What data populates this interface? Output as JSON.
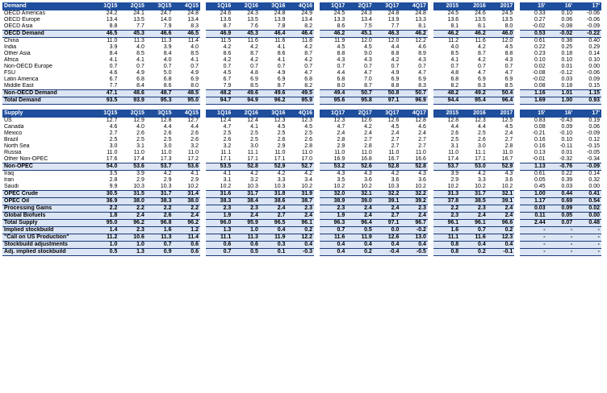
{
  "columns": [
    "1Q15",
    "2Q15",
    "3Q15",
    "4Q15",
    "1Q16",
    "2Q16",
    "3Q16",
    "4Q16",
    "1Q17",
    "2Q17",
    "3Q17",
    "4Q17",
    "2015",
    "2016",
    "2017",
    "15'",
    "16'",
    "17'"
  ],
  "sections": [
    {
      "title": "Demand",
      "rows": [
        {
          "label": "OECD Americas",
          "values": [
            "24.2",
            "24.1",
            "24.7",
            "24.8",
            "24.6",
            "24.3",
            "24.8",
            "24.9",
            "24.5",
            "24.3",
            "24.8",
            "24.8",
            "24.5",
            "24.6",
            "24.5",
            "0.33",
            "0.10",
            "-0.06"
          ],
          "total": false
        },
        {
          "label": "OECD Europe",
          "values": [
            "13.4",
            "13.5",
            "14.0",
            "13.4",
            "13.6",
            "13.5",
            "13.9",
            "13.4",
            "13.3",
            "13.4",
            "13.9",
            "13.3",
            "13.6",
            "13.5",
            "13.5",
            "0.27",
            "0.06",
            "-0.06"
          ],
          "total": false
        },
        {
          "label": "OECD Asia",
          "values": [
            "8.8",
            "7.7",
            "7.9",
            "8.3",
            "8.7",
            "7.6",
            "7.8",
            "8.2",
            "8.6",
            "7.5",
            "7.7",
            "8.1",
            "8.1",
            "8.1",
            "8.0",
            "-0.02",
            "-0.08",
            "-0.09"
          ],
          "total": false
        },
        {
          "label": "OECD Demand",
          "values": [
            "46.5",
            "45.3",
            "46.6",
            "46.5",
            "46.9",
            "45.3",
            "46.4",
            "46.4",
            "46.2",
            "45.1",
            "46.3",
            "46.2",
            "46.2",
            "46.2",
            "46.0",
            "0.53",
            "-0.02",
            "-0.22"
          ],
          "total": true
        },
        {
          "label": "China",
          "values": [
            "11.0",
            "11.3",
            "11.3",
            "11.4",
            "11.5",
            "11.6",
            "11.6",
            "11.8",
            "11.9",
            "12.0",
            "12.0",
            "12.2",
            "11.2",
            "11.6",
            "12.0",
            "0.61",
            "0.38",
            "0.40"
          ],
          "total": false
        },
        {
          "label": "India",
          "values": [
            "3.9",
            "4.0",
            "3.9",
            "4.0",
            "4.2",
            "4.2",
            "4.1",
            "4.2",
            "4.5",
            "4.5",
            "4.4",
            "4.6",
            "4.0",
            "4.2",
            "4.5",
            "0.22",
            "0.25",
            "0.29"
          ],
          "total": false
        },
        {
          "label": "Other Asia",
          "values": [
            "8.4",
            "8.5",
            "8.4",
            "8.5",
            "8.6",
            "8.7",
            "8.6",
            "8.7",
            "8.8",
            "9.0",
            "8.8",
            "8.9",
            "8.5",
            "8.7",
            "8.8",
            "0.23",
            "0.18",
            "0.14"
          ],
          "total": false
        },
        {
          "label": "Africa",
          "values": [
            "4.1",
            "4.1",
            "4.0",
            "4.1",
            "4.2",
            "4.2",
            "4.1",
            "4.2",
            "4.3",
            "4.3",
            "4.2",
            "4.3",
            "4.1",
            "4.2",
            "4.3",
            "0.10",
            "0.10",
            "0.10"
          ],
          "total": false
        },
        {
          "label": "Non-OECD Europe",
          "values": [
            "0.7",
            "0.7",
            "0.7",
            "0.7",
            "0.7",
            "0.7",
            "0.7",
            "0.7",
            "0.7",
            "0.7",
            "0.7",
            "0.7",
            "0.7",
            "0.7",
            "0.7",
            "0.02",
            "0.01",
            "0.00"
          ],
          "total": false
        },
        {
          "label": "FSU",
          "values": [
            "4.6",
            "4.9",
            "5.0",
            "4.9",
            "4.5",
            "4.8",
            "4.9",
            "4.7",
            "4.4",
            "4.7",
            "4.9",
            "4.7",
            "4.8",
            "4.7",
            "4.7",
            "-0.08",
            "-0.12",
            "-0.06"
          ],
          "total": false
        },
        {
          "label": "Latin America",
          "values": [
            "6.7",
            "6.8",
            "6.8",
            "6.9",
            "6.7",
            "6.9",
            "6.9",
            "6.8",
            "6.8",
            "7.0",
            "6.9",
            "6.9",
            "6.8",
            "6.9",
            "6.9",
            "-0.02",
            "0.03",
            "0.09"
          ],
          "total": false
        },
        {
          "label": "Middle East",
          "values": [
            "7.7",
            "8.4",
            "8.6",
            "8.0",
            "7.9",
            "8.5",
            "8.7",
            "8.2",
            "8.0",
            "8.7",
            "8.8",
            "8.3",
            "8.2",
            "8.3",
            "8.5",
            "0.08",
            "0.18",
            "0.15"
          ],
          "total": false
        },
        {
          "label": "Non-OECD Demand",
          "values": [
            "47.1",
            "48.6",
            "48.7",
            "48.5",
            "48.2",
            "49.6",
            "49.6",
            "49.5",
            "49.4",
            "50.7",
            "50.8",
            "50.7",
            "48.2",
            "49.2",
            "50.4",
            "1.16",
            "1.01",
            "1.15"
          ],
          "total": true
        },
        {
          "label": "Total Demand",
          "values": [
            "93.5",
            "93.9",
            "95.3",
            "95.0",
            "94.7",
            "94.9",
            "96.2",
            "95.9",
            "95.6",
            "95.8",
            "97.1",
            "96.9",
            "94.4",
            "95.4",
            "96.4",
            "1.69",
            "1.00",
            "0.93"
          ],
          "total": true
        }
      ]
    },
    {
      "title": "Supply",
      "rows": [
        {
          "label": "US",
          "values": [
            "12.7",
            "12.9",
            "12.8",
            "12.7",
            "12.4",
            "12.4",
            "12.3",
            "12.3",
            "12.3",
            "12.6",
            "12.6",
            "12.8",
            "12.8",
            "12.3",
            "12.5",
            "0.83",
            "-0.43",
            "0.19"
          ],
          "total": false
        },
        {
          "label": "Canada",
          "values": [
            "4.6",
            "4.0",
            "4.4",
            "4.4",
            "4.7",
            "4.1",
            "4.5",
            "4.5",
            "4.7",
            "4.2",
            "4.5",
            "4.6",
            "4.4",
            "4.4",
            "4.5",
            "0.08",
            "0.09",
            "0.06"
          ],
          "total": false
        },
        {
          "label": "Mexico",
          "values": [
            "2.7",
            "2.6",
            "2.6",
            "2.6",
            "2.5",
            "2.5",
            "2.5",
            "2.5",
            "2.4",
            "2.4",
            "2.4",
            "2.4",
            "2.6",
            "2.5",
            "2.4",
            "-0.21",
            "-0.10",
            "-0.09"
          ],
          "total": false
        },
        {
          "label": "Brazil",
          "values": [
            "2.5",
            "2.5",
            "2.5",
            "2.6",
            "2.6",
            "2.5",
            "2.6",
            "2.6",
            "2.8",
            "2.7",
            "2.7",
            "2.7",
            "2.5",
            "2.6",
            "2.7",
            "0.16",
            "0.10",
            "0.12"
          ],
          "total": false
        },
        {
          "label": "North Sea",
          "values": [
            "3.0",
            "3.1",
            "3.0",
            "3.2",
            "3.2",
            "3.0",
            "2.9",
            "2.8",
            "2.9",
            "2.8",
            "2.7",
            "2.7",
            "3.1",
            "3.0",
            "2.8",
            "0.16",
            "-0.11",
            "-0.15"
          ],
          "total": false
        },
        {
          "label": "Russia",
          "values": [
            "11.0",
            "11.0",
            "11.0",
            "11.0",
            "11.1",
            "11.1",
            "11.0",
            "11.0",
            "11.0",
            "11.0",
            "11.0",
            "11.0",
            "11.0",
            "11.1",
            "11.0",
            "0.13",
            "0.01",
            "-0.05"
          ],
          "total": false
        },
        {
          "label": "Other Non-OPEC",
          "values": [
            "17.6",
            "17.4",
            "17.3",
            "17.2",
            "17.1",
            "17.1",
            "17.1",
            "17.0",
            "16.9",
            "16.8",
            "16.7",
            "16.6",
            "17.4",
            "17.1",
            "16.7",
            "-0.01",
            "-0.32",
            "-0.34"
          ],
          "total": false
        },
        {
          "label": "Non-OPEC",
          "values": [
            "54.0",
            "53.6",
            "53.7",
            "53.6",
            "53.5",
            "52.8",
            "52.9",
            "52.7",
            "53.2",
            "52.6",
            "52.8",
            "52.8",
            "53.7",
            "53.0",
            "52.9",
            "1.13",
            "-0.76",
            "-0.09"
          ],
          "total": true
        },
        {
          "label": "Iraq",
          "values": [
            "3.5",
            "3.9",
            "4.2",
            "4.1",
            "4.1",
            "4.2",
            "4.2",
            "4.2",
            "4.3",
            "4.3",
            "4.2",
            "4.3",
            "3.9",
            "4.2",
            "4.3",
            "0.61",
            "0.22",
            "0.14"
          ],
          "total": false
        },
        {
          "label": "Iran",
          "values": [
            "2.8",
            "2.9",
            "2.9",
            "2.9",
            "3.1",
            "3.2",
            "3.3",
            "3.4",
            "3.5",
            "3.6",
            "3.6",
            "3.6",
            "2.9",
            "3.3",
            "3.6",
            "0.05",
            "0.39",
            "0.32"
          ],
          "total": false
        },
        {
          "label": "Saudi",
          "values": [
            "9.9",
            "10.3",
            "10.3",
            "10.2",
            "10.2",
            "10.3",
            "10.3",
            "10.2",
            "10.2",
            "10.2",
            "10.3",
            "10.2",
            "10.2",
            "10.2",
            "10.2",
            "0.45",
            "0.03",
            "0.00"
          ],
          "total": false
        },
        {
          "label": "OPEC Crude",
          "values": [
            "30.5",
            "31.5",
            "31.7",
            "31.4",
            "31.6",
            "31.7",
            "31.8",
            "31.9",
            "32.0",
            "32.1",
            "32.2",
            "32.2",
            "31.3",
            "31.7",
            "32.1",
            "1.00",
            "0.44",
            "0.41"
          ],
          "total": true
        },
        {
          "label": "OPEC Oil",
          "values": [
            "36.9",
            "38.0",
            "38.3",
            "38.0",
            "38.3",
            "38.4",
            "38.6",
            "38.7",
            "38.9",
            "39.0",
            "39.1",
            "39.2",
            "37.8",
            "38.5",
            "39.1",
            "1.17",
            "0.69",
            "0.54"
          ],
          "total": true
        },
        {
          "label": "Processing Gains",
          "values": [
            "2.2",
            "2.2",
            "2.2",
            "2.2",
            "2.3",
            "2.3",
            "2.4",
            "2.3",
            "2.3",
            "2.4",
            "2.4",
            "2.3",
            "2.2",
            "2.3",
            "2.4",
            "0.03",
            "0.09",
            "0.02"
          ],
          "total": true
        },
        {
          "label": "Global Biofuels",
          "values": [
            "1.8",
            "2.4",
            "2.6",
            "2.4",
            "1.9",
            "2.4",
            "2.7",
            "2.4",
            "1.9",
            "2.4",
            "2.7",
            "2.4",
            "2.3",
            "2.4",
            "2.4",
            "0.11",
            "0.05",
            "0.00"
          ],
          "total": true
        },
        {
          "label": "Total Supply",
          "values": [
            "95.0",
            "96.2",
            "96.8",
            "96.2",
            "96.0",
            "95.9",
            "96.5",
            "96.1",
            "96.3",
            "96.4",
            "97.1",
            "96.7",
            "96.1",
            "96.1",
            "96.6",
            "2.44",
            "0.07",
            "0.48"
          ],
          "total": true
        },
        {
          "label": "Implied stockbuild",
          "values": [
            "1.4",
            "2.3",
            "1.6",
            "1.2",
            "1.3",
            "1.0",
            "0.4",
            "0.2",
            "0.7",
            "0.5",
            "0.0",
            "-0.2",
            "1.6",
            "0.7",
            "0.2",
            "-",
            "-",
            "-"
          ],
          "total": true
        },
        {
          "label": "\"Call on US Production\"",
          "values": [
            "11.2",
            "10.6",
            "11.3",
            "11.4",
            "11.1",
            "11.3",
            "11.9",
            "12.2",
            "11.6",
            "11.9",
            "12.6",
            "13.0",
            "11.1",
            "11.6",
            "12.3",
            "-",
            "-",
            "-"
          ],
          "total": true
        },
        {
          "label": "Stockbuild adjustments",
          "values": [
            "1.0",
            "1.0",
            "0.7",
            "0.6",
            "0.6",
            "0.6",
            "0.3",
            "0.4",
            "0.4",
            "0.4",
            "0.4",
            "0.4",
            "0.8",
            "0.4",
            "0.4",
            "-",
            "-",
            "-"
          ],
          "total": true
        },
        {
          "label": "Adj. implied stockbuild",
          "values": [
            "0.5",
            "1.3",
            "0.9",
            "0.6",
            "0.7",
            "0.5",
            "0.1",
            "-0.3",
            "0.4",
            "0.2",
            "-0.4",
            "-0.5",
            "0.8",
            "0.2",
            "-0.1",
            "-",
            "-",
            "-"
          ],
          "total": true
        }
      ]
    }
  ]
}
